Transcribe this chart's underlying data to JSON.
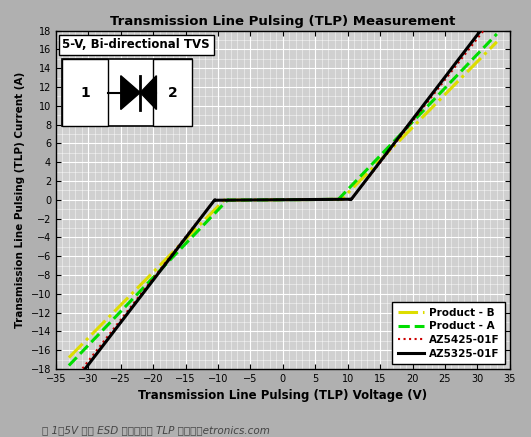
{
  "title": "Transmission Line Pulsing (TLP) Measurement",
  "xlabel": "Transmission Line Pulsing (TLP) Voltage (V)",
  "ylabel": "Transmission Line Pulsing (TLP) Current (A)",
  "xlim": [
    -35,
    35
  ],
  "ylim": [
    -18,
    18
  ],
  "xticks": [
    -35,
    -30,
    -25,
    -20,
    -15,
    -10,
    -5,
    0,
    5,
    10,
    15,
    20,
    25,
    30,
    35
  ],
  "yticks": [
    -18,
    -16,
    -14,
    -12,
    -10,
    -8,
    -6,
    -4,
    -2,
    0,
    2,
    4,
    6,
    8,
    10,
    12,
    14,
    16,
    18
  ],
  "plot_bg_color": "#d0d0d0",
  "fig_bg_color": "#b0b0b0",
  "grid_color": "#ffffff",
  "annotation_text": "5-V, Bi-directional TVS",
  "caption": "图 1：5V 双向 ESD 保护组件的 TLP 测试曲线",
  "legend": [
    {
      "label": "AZ5325-01F",
      "color": "#000000",
      "lw": 2.2,
      "ls": "-"
    },
    {
      "label": "AZ5425-01F",
      "color": "#cc0000",
      "lw": 1.5,
      "ls": ":"
    },
    {
      "label": "Product - A",
      "color": "#00dd00",
      "lw": 2.2,
      "ls": "--"
    },
    {
      "label": "Product - B",
      "color": "#dddd00",
      "lw": 2.2,
      "ls": "-."
    }
  ],
  "curve_az5325": {
    "v_break": 10.5,
    "slope_on": 0.9,
    "slope_off": 0.005
  },
  "curve_az5425": {
    "v_break": 10.5,
    "slope_on": 0.88,
    "slope_off": 0.005
  },
  "curve_prodA": {
    "v_break": 8.5,
    "slope_on": 0.72,
    "slope_off": 0.005
  },
  "curve_prodB": {
    "v_break": 9.0,
    "slope_on": 0.7,
    "slope_off": 0.005
  }
}
